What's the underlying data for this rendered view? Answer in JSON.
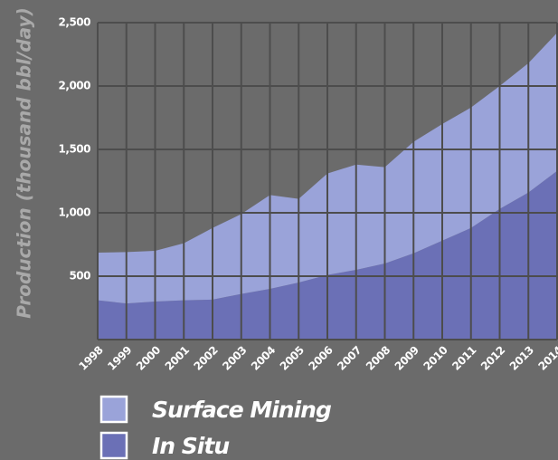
{
  "chart_data": {
    "type": "stacked_area",
    "y_label": "Production  (thousand bbl/day)",
    "categories": [
      "1998",
      "1999",
      "2000",
      "2001",
      "2002",
      "2003",
      "2004",
      "2005",
      "2006",
      "2007",
      "2008",
      "2009",
      "2010",
      "2011",
      "2012",
      "2013",
      "2014"
    ],
    "series": [
      {
        "name": "Surface Mining",
        "color": "#9aa3d9",
        "values": [
          376,
          405,
          400,
          450,
          565,
          630,
          740,
          660,
          800,
          830,
          760,
          880,
          920,
          950,
          970,
          1020,
          1090
        ]
      },
      {
        "name": "In Situ",
        "color": "#6b70b6",
        "values": [
          310,
          285,
          300,
          310,
          315,
          360,
          400,
          450,
          510,
          550,
          600,
          680,
          780,
          880,
          1030,
          1160,
          1330
        ]
      }
    ],
    "ylim": [
      0,
      2500
    ],
    "yticks": [
      500,
      {
        "value": 1000,
        "label": "1,000"
      },
      {
        "value": 1500,
        "label": "1,500"
      },
      {
        "value": 2000,
        "label": "2,000"
      },
      {
        "value": 2500,
        "label": "2,500"
      }
    ],
    "grid": true
  }
}
